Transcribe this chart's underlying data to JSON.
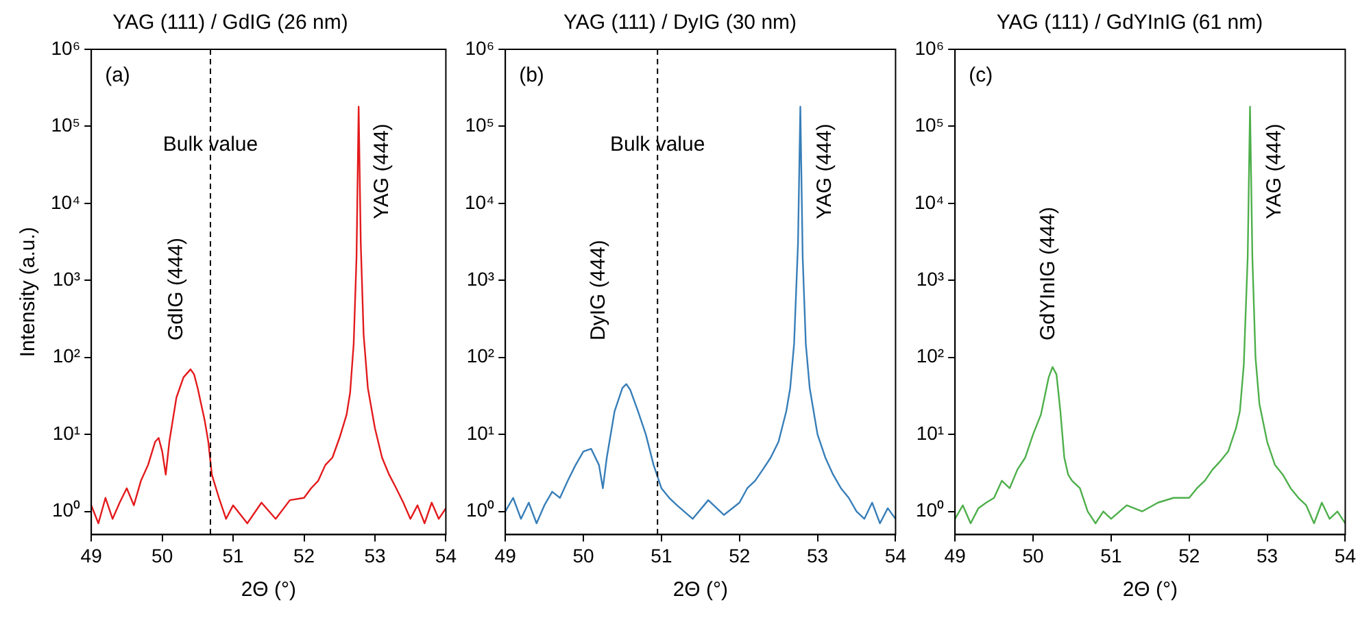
{
  "chart_data": [
    {
      "type": "line",
      "title": "YAG (111) / GdIG (26 nm)",
      "xlabel": "2Θ (°)",
      "ylabel": "Intensity (a.u.)",
      "log": "y",
      "grid": false,
      "legend": false,
      "marker": "none",
      "line_style": "solid",
      "color": "#e31a1c",
      "xlim": [
        49,
        54
      ],
      "xticks": [
        49,
        50,
        51,
        52,
        53,
        54
      ],
      "ylim": [
        0.5,
        1000000
      ],
      "yticks": [
        {
          "value": 1,
          "label": "10⁰"
        },
        {
          "value": 10,
          "label": "10¹"
        },
        {
          "value": 100,
          "label": "10²"
        },
        {
          "value": 1000,
          "label": "10³"
        },
        {
          "value": 10000,
          "label": "10⁴"
        },
        {
          "value": 100000,
          "label": "10⁵"
        },
        {
          "value": 1000000,
          "label": "10⁶"
        }
      ],
      "x": [
        49.0,
        49.1,
        49.2,
        49.3,
        49.4,
        49.5,
        49.6,
        49.7,
        49.8,
        49.9,
        49.95,
        50.0,
        50.05,
        50.1,
        50.2,
        50.3,
        50.4,
        50.45,
        50.5,
        50.6,
        50.65,
        50.7,
        50.8,
        50.9,
        51.0,
        51.2,
        51.4,
        51.6,
        51.8,
        52.0,
        52.1,
        52.2,
        52.3,
        52.4,
        52.5,
        52.6,
        52.65,
        52.7,
        52.74,
        52.77,
        52.8,
        52.84,
        52.9,
        53.0,
        53.1,
        53.2,
        53.3,
        53.4,
        53.5,
        53.6,
        53.7,
        53.8,
        53.9,
        54.0
      ],
      "values": [
        1.2,
        0.7,
        1.5,
        0.8,
        1.3,
        2.0,
        1.2,
        2.5,
        4,
        8,
        9,
        6,
        3,
        8,
        30,
        55,
        70,
        60,
        40,
        15,
        8,
        3,
        1.5,
        0.8,
        1.2,
        0.7,
        1.3,
        0.8,
        1.4,
        1.5,
        2,
        2.5,
        4,
        5,
        9,
        18,
        35,
        150,
        2000,
        180000,
        3000,
        200,
        40,
        12,
        5,
        3,
        2,
        1.3,
        0.8,
        1.2,
        0.7,
        1.3,
        0.8,
        1.1
      ],
      "ref_lines": [
        {
          "axis": "x",
          "value": 50.68,
          "label": "Bulk value",
          "color": "#000000",
          "line_style": "dashed"
        }
      ],
      "annotations": [
        "(a)",
        "GdIG (444)",
        "YAG (444)"
      ]
    },
    {
      "type": "line",
      "title": "YAG (111) / DyIG (30 nm)",
      "xlabel": "2Θ (°)",
      "log": "y",
      "grid": false,
      "legend": false,
      "marker": "none",
      "line_style": "solid",
      "color": "#377eb8",
      "xlim": [
        49,
        54
      ],
      "xticks": [
        49,
        50,
        51,
        52,
        53,
        54
      ],
      "ylim": [
        0.5,
        1000000
      ],
      "yticks": [
        {
          "value": 1,
          "label": "10⁰"
        },
        {
          "value": 10,
          "label": "10¹"
        },
        {
          "value": 100,
          "label": "10²"
        },
        {
          "value": 1000,
          "label": "10³"
        },
        {
          "value": 10000,
          "label": "10⁴"
        },
        {
          "value": 100000,
          "label": "10⁵"
        },
        {
          "value": 1000000,
          "label": "10⁶"
        }
      ],
      "x": [
        49.0,
        49.1,
        49.2,
        49.3,
        49.4,
        49.5,
        49.6,
        49.7,
        49.8,
        49.9,
        50.0,
        50.1,
        50.2,
        50.25,
        50.3,
        50.4,
        50.5,
        50.55,
        50.6,
        50.7,
        50.8,
        50.9,
        51.0,
        51.1,
        51.2,
        51.4,
        51.6,
        51.8,
        52.0,
        52.1,
        52.2,
        52.3,
        52.4,
        52.5,
        52.6,
        52.65,
        52.7,
        52.75,
        52.78,
        52.81,
        52.85,
        52.9,
        53.0,
        53.1,
        53.2,
        53.3,
        53.4,
        53.5,
        53.6,
        53.7,
        53.8,
        53.9,
        54.0
      ],
      "values": [
        1.0,
        1.5,
        0.8,
        1.3,
        0.7,
        1.2,
        1.8,
        1.5,
        2.5,
        4,
        6,
        6.5,
        4,
        2,
        5,
        20,
        40,
        45,
        38,
        20,
        10,
        4,
        2,
        1.5,
        1.2,
        0.8,
        1.4,
        0.9,
        1.3,
        2.0,
        2.5,
        3.5,
        5,
        8,
        20,
        40,
        150,
        3000,
        180000,
        2000,
        150,
        40,
        10,
        5,
        3,
        2,
        1.5,
        1.0,
        0.8,
        1.3,
        0.7,
        1.1,
        0.8
      ],
      "ref_lines": [
        {
          "axis": "x",
          "value": 50.95,
          "label": "Bulk value",
          "color": "#000000",
          "line_style": "dashed"
        }
      ],
      "annotations": [
        "(b)",
        "DyIG (444)",
        "YAG (444)"
      ]
    },
    {
      "type": "line",
      "title": "YAG (111) / GdYInIG (61 nm)",
      "xlabel": "2Θ (°)",
      "log": "y",
      "grid": false,
      "legend": false,
      "marker": "none",
      "line_style": "solid",
      "color": "#4daf4a",
      "xlim": [
        49,
        54
      ],
      "xticks": [
        49,
        50,
        51,
        52,
        53,
        54
      ],
      "ylim": [
        0.5,
        1000000
      ],
      "yticks": [
        {
          "value": 1,
          "label": "10⁰"
        },
        {
          "value": 10,
          "label": "10¹"
        },
        {
          "value": 100,
          "label": "10²"
        },
        {
          "value": 1000,
          "label": "10³"
        },
        {
          "value": 10000,
          "label": "10⁴"
        },
        {
          "value": 100000,
          "label": "10⁵"
        },
        {
          "value": 1000000,
          "label": "10⁶"
        }
      ],
      "x": [
        49.0,
        49.1,
        49.2,
        49.3,
        49.4,
        49.5,
        49.6,
        49.7,
        49.8,
        49.9,
        50.0,
        50.1,
        50.2,
        50.25,
        50.3,
        50.35,
        50.4,
        50.45,
        50.5,
        50.6,
        50.7,
        50.8,
        50.9,
        51.0,
        51.2,
        51.4,
        51.6,
        51.8,
        52.0,
        52.1,
        52.2,
        52.3,
        52.4,
        52.5,
        52.6,
        52.65,
        52.7,
        52.75,
        52.78,
        52.81,
        52.85,
        52.9,
        53.0,
        53.1,
        53.2,
        53.3,
        53.4,
        53.5,
        53.6,
        53.7,
        53.8,
        53.9,
        54.0
      ],
      "values": [
        0.8,
        1.2,
        0.7,
        1.1,
        1.3,
        1.5,
        2.5,
        2.0,
        3.5,
        5,
        10,
        18,
        55,
        75,
        60,
        20,
        5,
        3,
        2.5,
        2.0,
        1.0,
        0.7,
        1.0,
        0.8,
        1.2,
        1.0,
        1.3,
        1.5,
        1.5,
        2.0,
        2.5,
        3.5,
        4.5,
        6,
        12,
        20,
        80,
        2000,
        180000,
        2000,
        100,
        25,
        8,
        4,
        3,
        2,
        1.5,
        1.2,
        0.7,
        1.3,
        0.8,
        1.0,
        0.7
      ],
      "annotations": [
        "(c)",
        "GdYInIG (444)",
        "YAG (444)"
      ]
    }
  ]
}
